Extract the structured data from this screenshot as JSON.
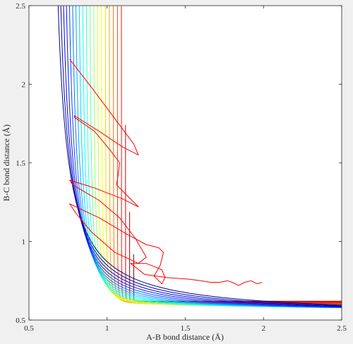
{
  "chart_data": {
    "type": "contour",
    "title": "",
    "xlabel": "A-B bond distance (Å)",
    "ylabel": "B-C bond distance (Å)",
    "xlim": [
      0.5,
      2.5
    ],
    "ylim": [
      0.5,
      2.5
    ],
    "xticks": [
      0.5,
      1,
      1.5,
      2,
      2.5
    ],
    "xtick_labels": [
      "0.5",
      "1",
      "1.5",
      "2",
      "2.5"
    ],
    "yticks": [
      0.5,
      1,
      1.5,
      2,
      2.5
    ],
    "ytick_labels": [
      "0.5",
      "1",
      "1.5",
      "2",
      "2.5"
    ],
    "grid": false,
    "colormap": "jet",
    "contour_level_count": 22,
    "trajectory_color": "#ff0000",
    "trajectory": [
      [
        0.76,
        2.16
      ],
      [
        0.9,
        1.98
      ],
      [
        1.05,
        1.78
      ],
      [
        1.17,
        1.62
      ],
      [
        1.2,
        1.55
      ],
      [
        1.1,
        1.6
      ],
      [
        0.95,
        1.7
      ],
      [
        0.79,
        1.8
      ],
      [
        0.79,
        1.79
      ],
      [
        0.92,
        1.7
      ],
      [
        1.02,
        1.58
      ],
      [
        1.08,
        1.5
      ],
      [
        1.07,
        1.42
      ],
      [
        1.06,
        1.36
      ],
      [
        1.12,
        1.3
      ],
      [
        1.2,
        1.22
      ],
      [
        1.1,
        1.27
      ],
      [
        0.92,
        1.34
      ],
      [
        0.76,
        1.39
      ],
      [
        0.78,
        1.36
      ],
      [
        0.95,
        1.26
      ],
      [
        1.08,
        1.15
      ],
      [
        1.18,
        1.02
      ],
      [
        1.25,
        0.9
      ],
      [
        1.2,
        0.86
      ],
      [
        1.05,
        0.93
      ],
      [
        0.9,
        1.06
      ],
      [
        0.8,
        1.18
      ],
      [
        0.76,
        1.24
      ],
      [
        0.8,
        1.22
      ],
      [
        0.95,
        1.15
      ],
      [
        1.12,
        1.05
      ],
      [
        1.25,
        0.98
      ],
      [
        1.33,
        0.96
      ],
      [
        1.36,
        0.93
      ],
      [
        1.34,
        0.85
      ],
      [
        1.3,
        0.78
      ],
      [
        1.35,
        0.73
      ],
      [
        1.37,
        0.77
      ],
      [
        1.35,
        0.82
      ],
      [
        1.25,
        0.86
      ],
      [
        1.15,
        0.86
      ],
      [
        1.24,
        0.79
      ],
      [
        1.38,
        0.77
      ],
      [
        1.52,
        0.76
      ],
      [
        1.6,
        0.75
      ],
      [
        1.66,
        0.74
      ],
      [
        1.72,
        0.74
      ],
      [
        1.77,
        0.75
      ],
      [
        1.8,
        0.74
      ],
      [
        1.84,
        0.72
      ],
      [
        1.88,
        0.74
      ],
      [
        1.92,
        0.75
      ],
      [
        1.96,
        0.73
      ],
      [
        1.99,
        0.74
      ]
    ]
  }
}
